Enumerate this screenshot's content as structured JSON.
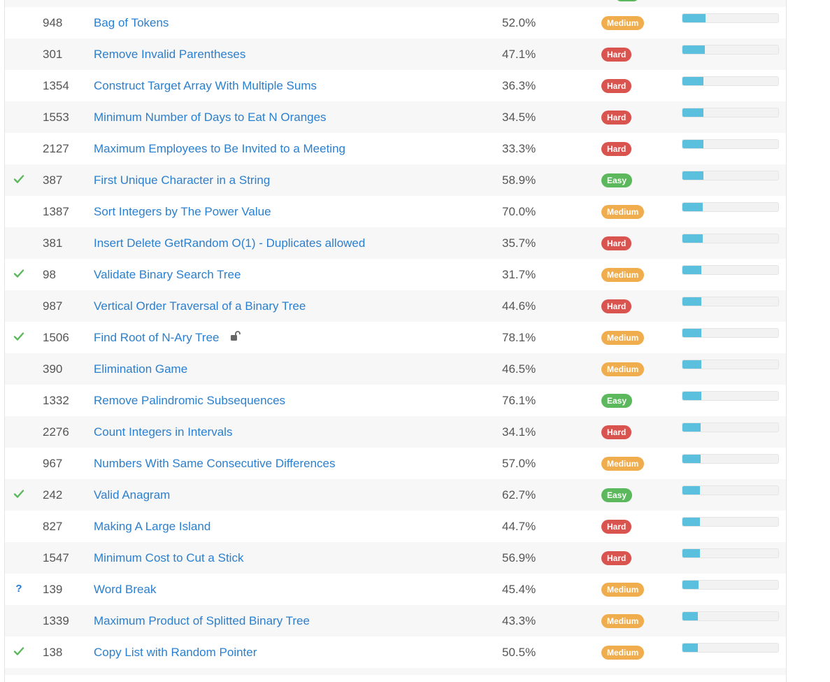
{
  "problems": [
    {
      "id": "948",
      "title": "Bag of Tokens",
      "acceptance": "52.0%",
      "difficulty": "Medium",
      "status": "",
      "locked": false,
      "frequency": 0.24
    },
    {
      "id": "301",
      "title": "Remove Invalid Parentheses",
      "acceptance": "47.1%",
      "difficulty": "Hard",
      "status": "",
      "locked": false,
      "frequency": 0.23
    },
    {
      "id": "1354",
      "title": "Construct Target Array With Multiple Sums",
      "acceptance": "36.3%",
      "difficulty": "Hard",
      "status": "",
      "locked": false,
      "frequency": 0.22
    },
    {
      "id": "1553",
      "title": "Minimum Number of Days to Eat N Oranges",
      "acceptance": "34.5%",
      "difficulty": "Hard",
      "status": "",
      "locked": false,
      "frequency": 0.22
    },
    {
      "id": "2127",
      "title": "Maximum Employees to Be Invited to a Meeting",
      "acceptance": "33.3%",
      "difficulty": "Hard",
      "status": "",
      "locked": false,
      "frequency": 0.22
    },
    {
      "id": "387",
      "title": "First Unique Character in a String",
      "acceptance": "58.9%",
      "difficulty": "Easy",
      "status": "solved",
      "locked": false,
      "frequency": 0.22
    },
    {
      "id": "1387",
      "title": "Sort Integers by The Power Value",
      "acceptance": "70.0%",
      "difficulty": "Medium",
      "status": "",
      "locked": false,
      "frequency": 0.21
    },
    {
      "id": "381",
      "title": "Insert Delete GetRandom O(1) - Duplicates allowed",
      "acceptance": "35.7%",
      "difficulty": "Hard",
      "status": "",
      "locked": false,
      "frequency": 0.21
    },
    {
      "id": "98",
      "title": "Validate Binary Search Tree",
      "acceptance": "31.7%",
      "difficulty": "Medium",
      "status": "solved",
      "locked": false,
      "frequency": 0.2
    },
    {
      "id": "987",
      "title": "Vertical Order Traversal of a Binary Tree",
      "acceptance": "44.6%",
      "difficulty": "Hard",
      "status": "",
      "locked": false,
      "frequency": 0.2
    },
    {
      "id": "1506",
      "title": "Find Root of N-Ary Tree",
      "acceptance": "78.1%",
      "difficulty": "Medium",
      "status": "solved",
      "locked": true,
      "frequency": 0.2
    },
    {
      "id": "390",
      "title": "Elimination Game",
      "acceptance": "46.5%",
      "difficulty": "Medium",
      "status": "",
      "locked": false,
      "frequency": 0.2
    },
    {
      "id": "1332",
      "title": "Remove Palindromic Subsequences",
      "acceptance": "76.1%",
      "difficulty": "Easy",
      "status": "",
      "locked": false,
      "frequency": 0.2
    },
    {
      "id": "2276",
      "title": "Count Integers in Intervals",
      "acceptance": "34.1%",
      "difficulty": "Hard",
      "status": "",
      "locked": false,
      "frequency": 0.19
    },
    {
      "id": "967",
      "title": "Numbers With Same Consecutive Differences",
      "acceptance": "57.0%",
      "difficulty": "Medium",
      "status": "",
      "locked": false,
      "frequency": 0.19
    },
    {
      "id": "242",
      "title": "Valid Anagram",
      "acceptance": "62.7%",
      "difficulty": "Easy",
      "status": "solved",
      "locked": false,
      "frequency": 0.18
    },
    {
      "id": "827",
      "title": "Making A Large Island",
      "acceptance": "44.7%",
      "difficulty": "Hard",
      "status": "",
      "locked": false,
      "frequency": 0.18
    },
    {
      "id": "1547",
      "title": "Minimum Cost to Cut a Stick",
      "acceptance": "56.9%",
      "difficulty": "Hard",
      "status": "",
      "locked": false,
      "frequency": 0.18
    },
    {
      "id": "139",
      "title": "Word Break",
      "acceptance": "45.4%",
      "difficulty": "Medium",
      "status": "attempted",
      "locked": false,
      "frequency": 0.17
    },
    {
      "id": "1339",
      "title": "Maximum Product of Splitted Binary Tree",
      "acceptance": "43.3%",
      "difficulty": "Medium",
      "status": "",
      "locked": false,
      "frequency": 0.16
    },
    {
      "id": "138",
      "title": "Copy List with Random Pointer",
      "acceptance": "50.5%",
      "difficulty": "Medium",
      "status": "solved",
      "locked": false,
      "frequency": 0.16
    }
  ],
  "icons": {
    "solved": "checkmark-icon",
    "attempted": "question-mark-icon",
    "locked": "unlock-icon"
  },
  "colors": {
    "link": "#2a7fcf",
    "easy": "#5cb85c",
    "medium": "#f0ad4e",
    "hard": "#d9534f",
    "frequency_bar": "#5bc0de"
  }
}
